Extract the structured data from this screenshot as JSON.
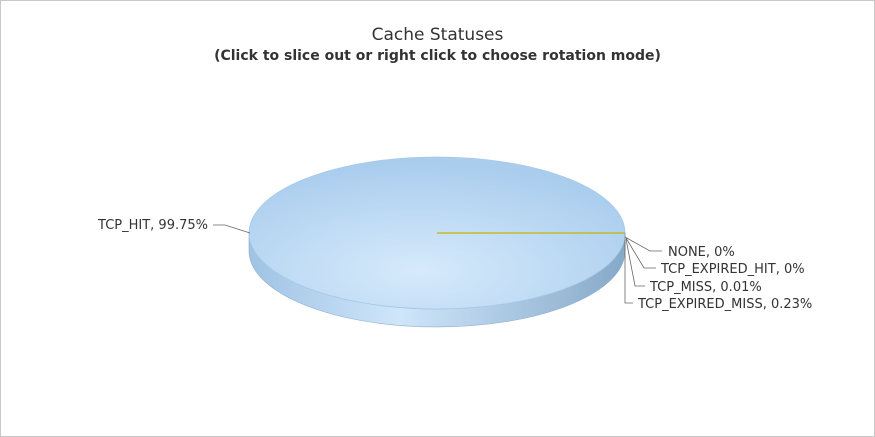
{
  "chart_data": {
    "type": "pie",
    "title": "Cache Statuses",
    "subtitle": "(Click to slice out or right click to choose rotation mode)",
    "slices": [
      {
        "name": "TCP_HIT",
        "value": 99.75,
        "label": "TCP_HIT, 99.75%"
      },
      {
        "name": "NONE",
        "value": 0,
        "label": "NONE, 0%"
      },
      {
        "name": "TCP_EXPIRED_HIT",
        "value": 0,
        "label": "TCP_EXPIRED_HIT, 0%"
      },
      {
        "name": "TCP_MISS",
        "value": 0.01,
        "label": "TCP_MISS, 0.01%"
      },
      {
        "name": "TCP_EXPIRED_MISS",
        "value": 0.23,
        "label": "TCP_EXPIRED_MISS, 0.23%"
      }
    ],
    "colors": {
      "main_slice": "#b3d4f0",
      "side": "#8fb4d6",
      "small_slice_line": "#c8b400",
      "leader": "#666666"
    },
    "style": "3d"
  }
}
